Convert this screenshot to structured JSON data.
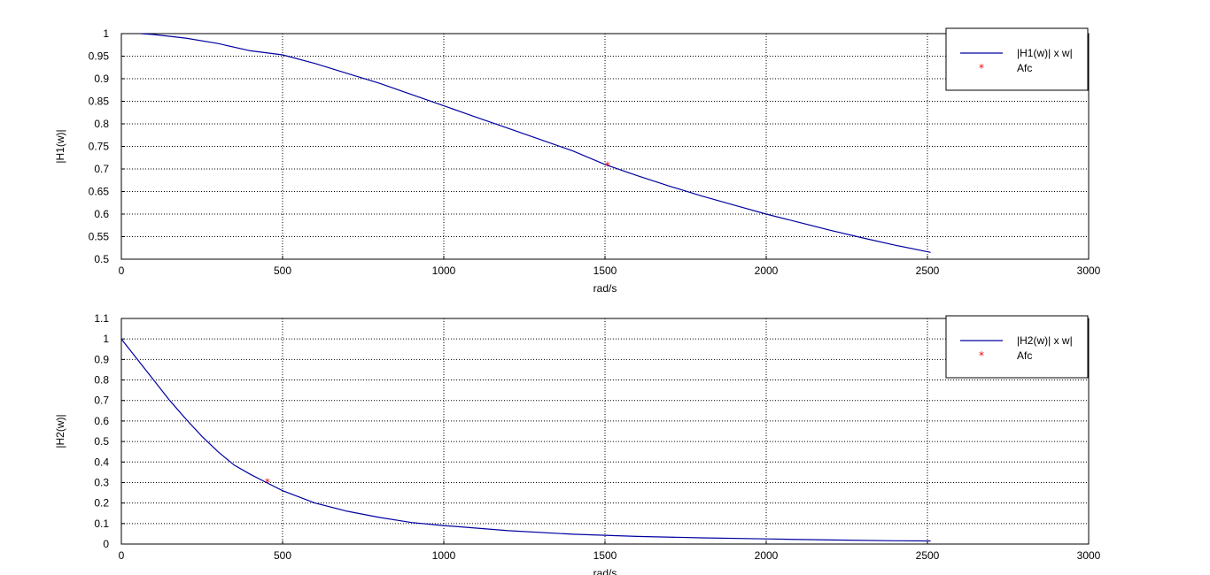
{
  "chart_data": [
    {
      "type": "line",
      "ylabel": "|H1(w)|",
      "xlabel": "rad/s",
      "xlim": [
        0,
        3000
      ],
      "ylim": [
        0.5,
        1
      ],
      "xticks": [
        "0",
        "500",
        "1000",
        "1500",
        "2000",
        "2500",
        "3000"
      ],
      "yticks": [
        "0.5",
        "0.55",
        "0.6",
        "0.65",
        "0.7",
        "0.75",
        "0.8",
        "0.85",
        "0.9",
        "0.95",
        "1"
      ],
      "grid": true,
      "legend_position": "top-right",
      "series": [
        {
          "name": "|H1(w)| x w|",
          "color": "#0000a0",
          "style": "line",
          "x": [
            60,
            100,
            200,
            300,
            400,
            500,
            600,
            700,
            800,
            900,
            1000,
            1100,
            1200,
            1300,
            1400,
            1500,
            1600,
            1700,
            1800,
            1900,
            2000,
            2100,
            2200,
            2300,
            2400,
            2510
          ],
          "y": [
            1.0,
            0.998,
            0.99,
            0.978,
            0.962,
            0.953,
            0.934,
            0.912,
            0.89,
            0.865,
            0.84,
            0.815,
            0.79,
            0.765,
            0.74,
            0.71,
            0.685,
            0.662,
            0.64,
            0.62,
            0.6,
            0.582,
            0.564,
            0.547,
            0.531,
            0.515
          ]
        },
        {
          "name": "Afc",
          "color": "#ff0000",
          "style": "marker",
          "x": [
            1508
          ],
          "y": [
            0.707
          ]
        }
      ]
    },
    {
      "type": "line",
      "ylabel": "|H2(w)|",
      "xlabel": "rad/s",
      "xlim": [
        0,
        3000
      ],
      "ylim": [
        0,
        1.1
      ],
      "xticks": [
        "0",
        "500",
        "1000",
        "1500",
        "2000",
        "2500",
        "3000"
      ],
      "yticks": [
        "0",
        "0.1",
        "0.2",
        "0.3",
        "0.4",
        "0.5",
        "0.6",
        "0.7",
        "0.8",
        "0.9",
        "1",
        "1.1"
      ],
      "grid": true,
      "legend_position": "top-right",
      "series": [
        {
          "name": "|H2(w)| x w|",
          "color": "#0000a0",
          "style": "line",
          "x": [
            0,
            50,
            100,
            150,
            200,
            250,
            300,
            350,
            400,
            450,
            500,
            600,
            700,
            800,
            900,
            1000,
            1200,
            1400,
            1600,
            1800,
            2000,
            2200,
            2400,
            2510
          ],
          "y": [
            1.0,
            0.9,
            0.8,
            0.7,
            0.61,
            0.525,
            0.45,
            0.385,
            0.34,
            0.3,
            0.26,
            0.2,
            0.16,
            0.13,
            0.105,
            0.09,
            0.065,
            0.048,
            0.037,
            0.03,
            0.025,
            0.02,
            0.016,
            0.015
          ]
        },
        {
          "name": "Afc",
          "color": "#ff0000",
          "style": "marker",
          "x": [
            453
          ],
          "y": [
            0.3
          ]
        }
      ]
    }
  ]
}
